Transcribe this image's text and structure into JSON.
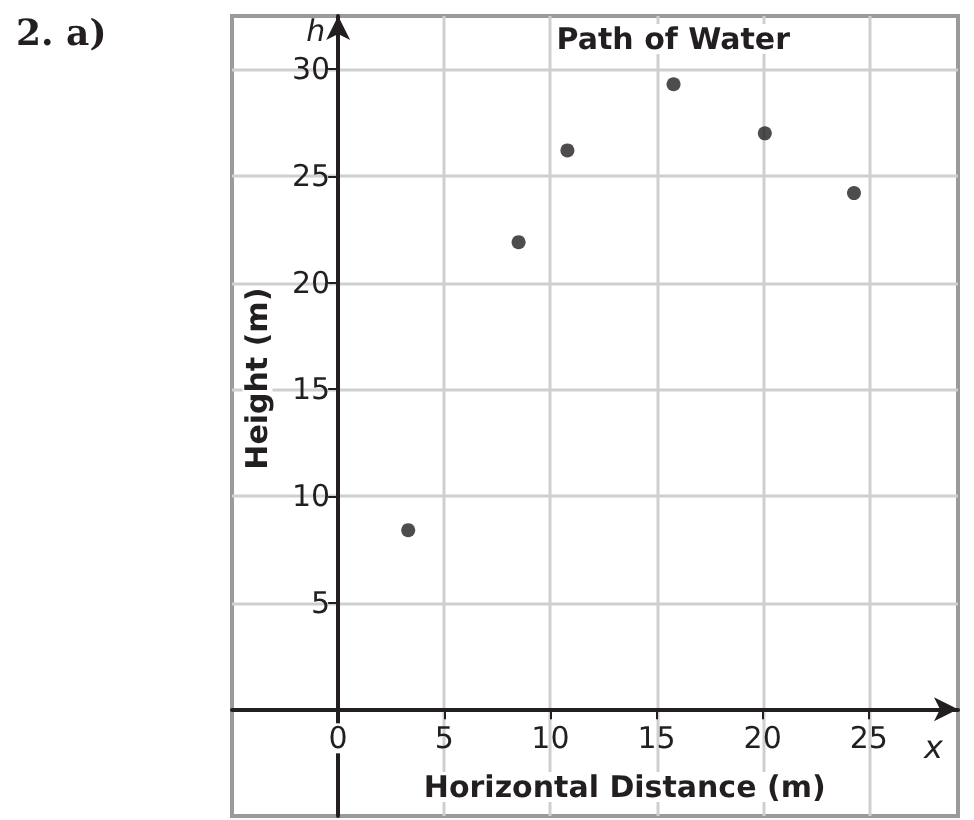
{
  "chart_data": {
    "type": "scatter",
    "title": "Path of Water",
    "xlabel": "Horizontal Distance (m)",
    "ylabel": "Height (m)",
    "annotations": [
      "2. a)",
      "h",
      "x"
    ],
    "x": [
      3.3,
      8.5,
      10.8,
      15.8,
      20.1,
      24.3
    ],
    "series": [
      {
        "color": "#231f20",
        "values": [
          8.4,
          21.9,
          26.2,
          29.3,
          27.0,
          24.2
        ]
      }
    ],
    "xlim": [
      -5,
      29.2
    ],
    "ylim": [
      -5,
      32.5
    ],
    "xticks": [
      0,
      5,
      10,
      15,
      20,
      25
    ],
    "yticks": [
      5,
      10,
      15,
      20,
      25,
      30
    ],
    "grid": true,
    "marker": "circle"
  }
}
